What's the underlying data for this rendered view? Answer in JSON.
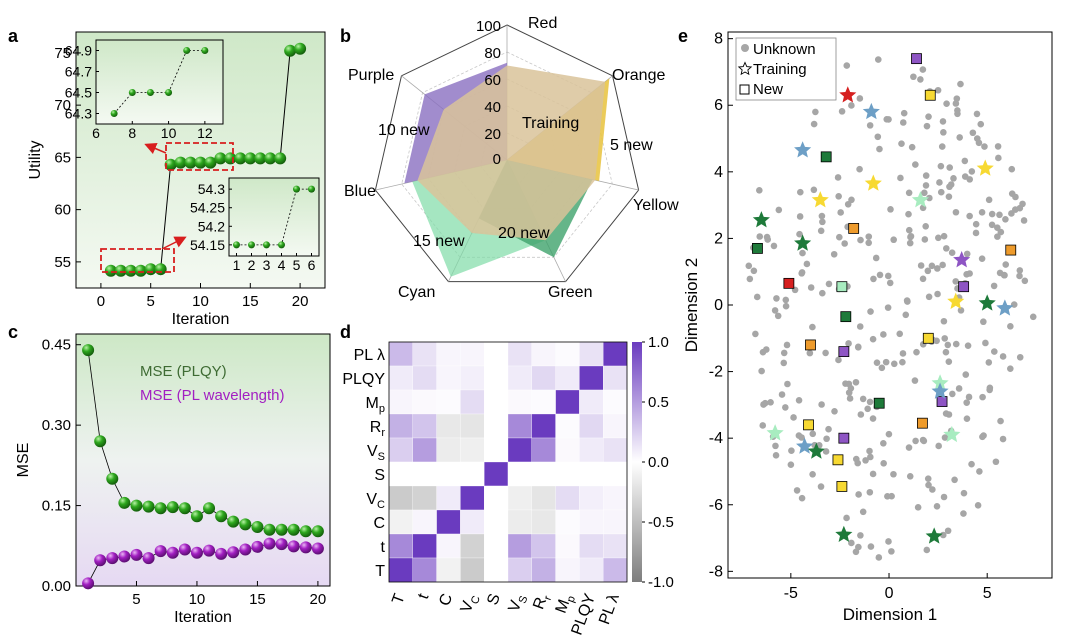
{
  "colors": {
    "ball_green": "#2ea81e",
    "ball_purple": "#a21fc2",
    "red": "#d62020",
    "orange": "#ee9b2c",
    "yellow": "#f7d932",
    "green": "#1e7a3a",
    "cyan": "#a8ecc0",
    "blue": "#6d9fc6",
    "purple": "#8e55c4",
    "unknown": "#a6a6a6",
    "heat_pos": "#6a3bbf",
    "heat_neg": "#7d7d7d",
    "arrow": "#d81e1e"
  },
  "chart_data": [
    {
      "panel": "a",
      "type": "scatter",
      "xlabel": "Iteration",
      "ylabel": "Utility",
      "xlim": [
        -2.5,
        22.5
      ],
      "ylim": [
        52.5,
        77
      ],
      "xticks": [
        0,
        5,
        10,
        15,
        20
      ],
      "yticks": [
        55,
        60,
        65,
        70,
        75
      ],
      "x": [
        1,
        2,
        3,
        4,
        5,
        6,
        7,
        8,
        9,
        10,
        11,
        12,
        13,
        14,
        15,
        16,
        17,
        18,
        19,
        20
      ],
      "values": [
        54.15,
        54.15,
        54.15,
        54.15,
        54.3,
        54.3,
        64.3,
        64.5,
        64.5,
        64.5,
        64.5,
        64.9,
        64.9,
        64.9,
        64.9,
        64.9,
        64.9,
        64.9,
        75.2,
        75.4
      ],
      "inset_upper": {
        "xlim": [
          6,
          13
        ],
        "ylim": [
          64.2,
          65.0
        ],
        "xticks": [
          6,
          8,
          10,
          12
        ],
        "yticks": [
          64.3,
          64.5,
          64.7,
          64.9
        ],
        "x": [
          7,
          8,
          9,
          10,
          11,
          12
        ],
        "values": [
          64.3,
          64.5,
          64.5,
          64.5,
          64.9,
          64.9
        ]
      },
      "inset_lower": {
        "xlim": [
          0.5,
          6.5
        ],
        "ylim": [
          54.12,
          54.33
        ],
        "xticks": [
          1,
          2,
          3,
          4,
          5,
          6
        ],
        "yticks": [
          54.15,
          54.2,
          54.25,
          54.3
        ],
        "x": [
          1,
          2,
          3,
          4,
          5,
          6
        ],
        "values": [
          54.15,
          54.15,
          54.15,
          54.15,
          54.3,
          54.3
        ]
      }
    },
    {
      "panel": "b",
      "type": "radar",
      "axes": [
        "Red",
        "Orange",
        "Yellow",
        "Green",
        "Cyan",
        "Blue",
        "Purple"
      ],
      "rticks": [
        0,
        20,
        40,
        60,
        80,
        100
      ],
      "series": [
        {
          "name": "Training",
          "values": [
            70,
            93,
            67,
            66,
            60,
            68,
            60
          ]
        },
        {
          "name": "5 new",
          "values": [
            0,
            97,
            70,
            0,
            0,
            0,
            0
          ]
        },
        {
          "name": "20 new",
          "values": [
            0,
            0,
            65,
            80,
            48,
            0,
            0
          ]
        },
        {
          "name": "15 new",
          "values": [
            0,
            0,
            0,
            66,
            96,
            72,
            0
          ]
        },
        {
          "name": "10 new",
          "values": [
            72,
            0,
            0,
            0,
            0,
            78,
            78
          ]
        }
      ]
    },
    {
      "panel": "c",
      "type": "scatter",
      "xlabel": "Iteration",
      "ylabel": "MSE",
      "xlim": [
        0,
        21
      ],
      "ylim": [
        0,
        0.47
      ],
      "xticks": [
        5,
        10,
        15,
        20
      ],
      "yticks": [
        "0.00",
        "0.15",
        "0.30",
        "0.45"
      ],
      "x": [
        1,
        2,
        3,
        4,
        5,
        6,
        7,
        8,
        9,
        10,
        11,
        12,
        13,
        14,
        15,
        16,
        17,
        18,
        19,
        20
      ],
      "series": [
        {
          "name": "MSE (PLQY)",
          "values": [
            0.44,
            0.27,
            0.2,
            0.155,
            0.15,
            0.148,
            0.145,
            0.147,
            0.145,
            0.13,
            0.145,
            0.13,
            0.12,
            0.115,
            0.11,
            0.105,
            0.105,
            0.105,
            0.102,
            0.102
          ]
        },
        {
          "name": "MSE (PL wavelength)",
          "values": [
            0.005,
            0.048,
            0.052,
            0.055,
            0.058,
            0.052,
            0.065,
            0.062,
            0.068,
            0.062,
            0.066,
            0.06,
            0.063,
            0.068,
            0.073,
            0.079,
            0.078,
            0.074,
            0.072,
            0.07
          ]
        }
      ]
    },
    {
      "panel": "d",
      "type": "heatmap",
      "rows": [
        "PL λ",
        "PLQY",
        "M_p",
        "R_r",
        "V_S",
        "S",
        "V_C",
        "C",
        "t",
        "T"
      ],
      "cols": [
        "T",
        "t",
        "C",
        "V_C",
        "S",
        "V_S",
        "R_r",
        "M_p",
        "PLQY",
        "PL λ"
      ],
      "colorbar_ticks": [
        "1.0",
        "0.5",
        "0.0",
        "-0.5",
        "-1.0"
      ],
      "values": [
        [
          0.35,
          0.15,
          0.05,
          0.05,
          0.0,
          0.15,
          0.05,
          0.02,
          0.15,
          1.0
        ],
        [
          0.1,
          0.18,
          0.05,
          0.08,
          0.0,
          0.1,
          0.2,
          0.1,
          1.0,
          0.15
        ],
        [
          0.05,
          0.03,
          0.02,
          0.18,
          0.0,
          0.03,
          0.02,
          1.0,
          0.1,
          0.02
        ],
        [
          0.4,
          0.3,
          -0.18,
          -0.2,
          0.0,
          0.6,
          1.0,
          0.02,
          0.2,
          0.05
        ],
        [
          0.25,
          0.5,
          -0.15,
          -0.12,
          0.0,
          1.0,
          0.6,
          0.03,
          0.1,
          0.15
        ],
        [
          0.0,
          0.0,
          0.0,
          0.0,
          1.0,
          0.0,
          0.0,
          0.0,
          0.0,
          0.0
        ],
        [
          -0.4,
          -0.35,
          0.1,
          1.0,
          0.0,
          -0.12,
          -0.2,
          0.18,
          0.08,
          0.05
        ],
        [
          -0.1,
          0.05,
          1.0,
          0.1,
          0.0,
          -0.15,
          -0.18,
          0.02,
          0.05,
          0.05
        ],
        [
          0.6,
          1.0,
          0.05,
          -0.35,
          0.0,
          0.5,
          0.3,
          0.03,
          0.18,
          0.15
        ],
        [
          1.0,
          0.6,
          -0.1,
          -0.4,
          0.0,
          0.25,
          0.4,
          0.05,
          0.1,
          0.35
        ]
      ]
    },
    {
      "panel": "e",
      "type": "scatter",
      "xlabel": "Dimension 1",
      "ylabel": "Dimension 2",
      "xlim": [
        -8.2,
        8.3
      ],
      "ylim": [
        -8.2,
        8.2
      ],
      "xticks": [
        -5,
        0,
        5
      ],
      "yticks": [
        -8,
        -6,
        -4,
        -2,
        0,
        2,
        4,
        6,
        8
      ],
      "legend": [
        "Unknown",
        "Training",
        "New"
      ],
      "training": [
        {
          "c": "red",
          "x": -2.1,
          "y": 6.3
        },
        {
          "c": "blue",
          "x": -0.9,
          "y": 5.8
        },
        {
          "c": "blue",
          "x": -4.4,
          "y": 4.65
        },
        {
          "c": "yellow",
          "x": -0.8,
          "y": 3.65
        },
        {
          "c": "yellow",
          "x": -3.5,
          "y": 3.15
        },
        {
          "c": "yellow",
          "x": 4.9,
          "y": 4.1
        },
        {
          "c": "cyan",
          "x": 1.6,
          "y": 3.15
        },
        {
          "c": "green",
          "x": -6.5,
          "y": 2.55
        },
        {
          "c": "green",
          "x": -4.4,
          "y": 1.85
        },
        {
          "c": "purple",
          "x": 3.7,
          "y": 1.35
        },
        {
          "c": "yellow",
          "x": 3.4,
          "y": 0.1
        },
        {
          "c": "green",
          "x": 5.0,
          "y": 0.05
        },
        {
          "c": "blue",
          "x": 5.9,
          "y": -0.1
        },
        {
          "c": "cyan",
          "x": 2.6,
          "y": -2.35
        },
        {
          "c": "blue",
          "x": 2.6,
          "y": -2.6
        },
        {
          "c": "cyan",
          "x": -5.8,
          "y": -3.85
        },
        {
          "c": "cyan",
          "x": 3.2,
          "y": -3.9
        },
        {
          "c": "blue",
          "x": -4.3,
          "y": -4.25
        },
        {
          "c": "green",
          "x": -3.7,
          "y": -4.4
        },
        {
          "c": "green",
          "x": -2.3,
          "y": -6.9
        },
        {
          "c": "green",
          "x": 2.3,
          "y": -6.95
        }
      ],
      "new": [
        {
          "c": "purple",
          "x": 1.4,
          "y": 7.4
        },
        {
          "c": "yellow",
          "x": 2.1,
          "y": 6.3
        },
        {
          "c": "green",
          "x": -3.2,
          "y": 4.45
        },
        {
          "c": "orange",
          "x": -1.8,
          "y": 2.3
        },
        {
          "c": "green",
          "x": -6.7,
          "y": 1.7
        },
        {
          "c": "orange",
          "x": 6.2,
          "y": 1.65
        },
        {
          "c": "red",
          "x": -5.1,
          "y": 0.65
        },
        {
          "c": "cyan",
          "x": -2.4,
          "y": 0.55
        },
        {
          "c": "purple",
          "x": 3.8,
          "y": 0.55
        },
        {
          "c": "green",
          "x": -2.2,
          "y": -0.35
        },
        {
          "c": "orange",
          "x": -4.0,
          "y": -1.2
        },
        {
          "c": "purple",
          "x": -2.3,
          "y": -1.4
        },
        {
          "c": "yellow",
          "x": 2.0,
          "y": -1.0
        },
        {
          "c": "green",
          "x": -0.5,
          "y": -2.95
        },
        {
          "c": "purple",
          "x": 2.7,
          "y": -2.9
        },
        {
          "c": "yellow",
          "x": -4.1,
          "y": -3.6
        },
        {
          "c": "orange",
          "x": 1.7,
          "y": -3.55
        },
        {
          "c": "purple",
          "x": -2.3,
          "y": -4.0
        },
        {
          "c": "yellow",
          "x": -2.6,
          "y": -4.65
        },
        {
          "c": "yellow",
          "x": -2.4,
          "y": -5.45
        }
      ]
    }
  ],
  "text": {
    "a": "a",
    "b": "b",
    "c": "c",
    "d": "d",
    "e": "e",
    "radar_center": "0",
    "legend_c_1": "MSE (PLQY)",
    "legend_c_2": "MSE (PL wavelength)",
    "legend_e_1": "Unknown",
    "legend_e_2": "Training",
    "legend_e_3": "New"
  }
}
